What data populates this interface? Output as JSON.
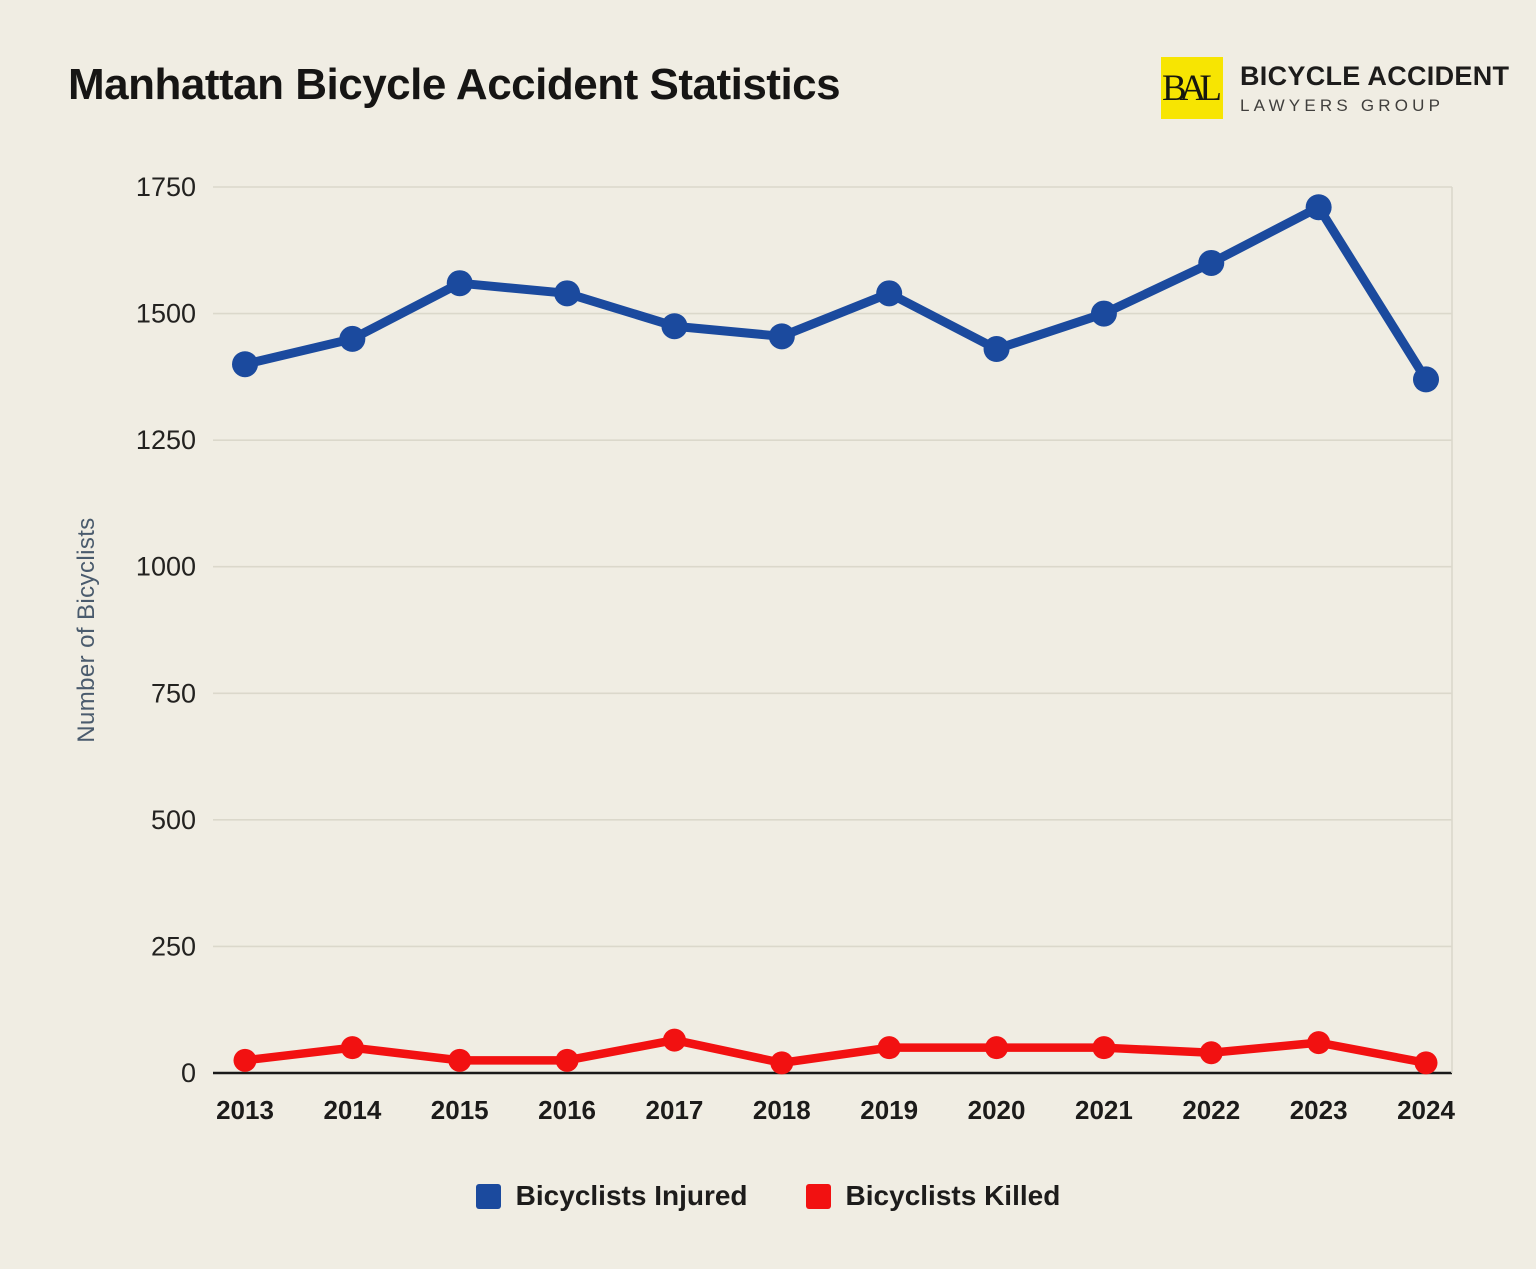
{
  "page": {
    "background": "#f0ede3"
  },
  "header": {
    "title": "Manhattan Bicycle Accident Statistics",
    "logo": {
      "monogram": "BAL",
      "line1": "BICYCLE ACCIDENT",
      "line2": "LAWYERS GROUP",
      "badge_color": "#f7e502"
    }
  },
  "chart_data": {
    "type": "line",
    "title": "Manhattan Bicycle Accident Statistics",
    "x": [
      "2013",
      "2014",
      "2015",
      "2016",
      "2017",
      "2018",
      "2019",
      "2020",
      "2021",
      "2022",
      "2023",
      "2024"
    ],
    "series": [
      {
        "name": "Bicyclists Injured",
        "color": "#1b4a9e",
        "values": [
          1400,
          1450,
          1560,
          1540,
          1475,
          1455,
          1540,
          1430,
          1500,
          1600,
          1710,
          1370
        ]
      },
      {
        "name": "Bicyclists Killed",
        "color": "#f21111",
        "values": [
          25,
          50,
          25,
          25,
          65,
          20,
          50,
          50,
          50,
          40,
          60,
          20
        ]
      }
    ],
    "xlabel": "",
    "ylabel": "Number of Bicyclists",
    "yticks": [
      0,
      250,
      500,
      750,
      1000,
      1250,
      1500,
      1750
    ],
    "ylim": [
      0,
      1750
    ],
    "grid": true,
    "legend_position": "bottom"
  },
  "colors": {
    "background": "#f0ede3",
    "grid": "#dbd8cb",
    "axis": "#1a1a1a",
    "ytick_text": "#232220",
    "xtick_text": "#1c1b1a",
    "y_axis_title": "#4a5b6d",
    "title_text": "#161514"
  }
}
